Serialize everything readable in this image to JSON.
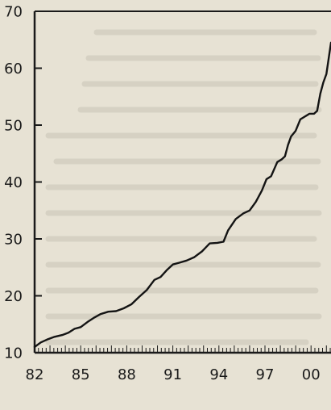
{
  "chart_data": {
    "type": "line",
    "title": "",
    "xlabel": "",
    "ylabel": "",
    "xlim": [
      1982,
      2001.3
    ],
    "ylim": [
      10,
      70
    ],
    "x_ticks": [
      1982,
      1985,
      1988,
      1991,
      1994,
      1997,
      2000
    ],
    "x_tick_labels": [
      "82",
      "85",
      "88",
      "91",
      "94",
      "97",
      "00"
    ],
    "y_ticks": [
      10,
      20,
      30,
      40,
      50,
      60,
      70
    ],
    "y_tick_labels": [
      "10",
      "20",
      "30",
      "40",
      "50",
      "60",
      "70"
    ],
    "grid": false,
    "series": [
      {
        "x": [
          1982.0,
          1982.4,
          1982.8,
          1983.3,
          1983.8,
          1984.2,
          1984.6,
          1985.0,
          1985.5,
          1985.9,
          1986.3,
          1986.8,
          1987.3,
          1987.8,
          1988.3,
          1988.8,
          1989.3,
          1989.8,
          1990.2,
          1990.6,
          1991.0,
          1991.4,
          1991.9,
          1992.4,
          1992.9,
          1993.4,
          1993.9,
          1994.3,
          1994.6,
          1995.1,
          1995.6,
          1996.0,
          1996.4,
          1996.8,
          1997.1,
          1997.4,
          1997.8,
          1998.1,
          1998.3,
          1998.5,
          1998.7,
          1999.0,
          1999.3,
          1999.6,
          1999.9,
          2000.2,
          2000.4,
          2000.6,
          2000.8,
          2001.0,
          2001.3
        ],
        "y": [
          11.0,
          11.8,
          12.3,
          12.8,
          13.1,
          13.5,
          14.2,
          14.5,
          15.5,
          16.2,
          16.8,
          17.2,
          17.3,
          17.8,
          18.5,
          19.8,
          21.0,
          22.8,
          23.3,
          24.5,
          25.5,
          25.8,
          26.2,
          26.8,
          27.8,
          29.2,
          29.3,
          29.5,
          31.5,
          33.5,
          34.5,
          35.0,
          36.5,
          38.5,
          40.5,
          41.0,
          43.5,
          44.0,
          44.5,
          46.5,
          48.0,
          49.0,
          51.0,
          51.5,
          52.0,
          52.0,
          52.5,
          55.5,
          57.5,
          59.0,
          64.5
        ]
      }
    ]
  }
}
